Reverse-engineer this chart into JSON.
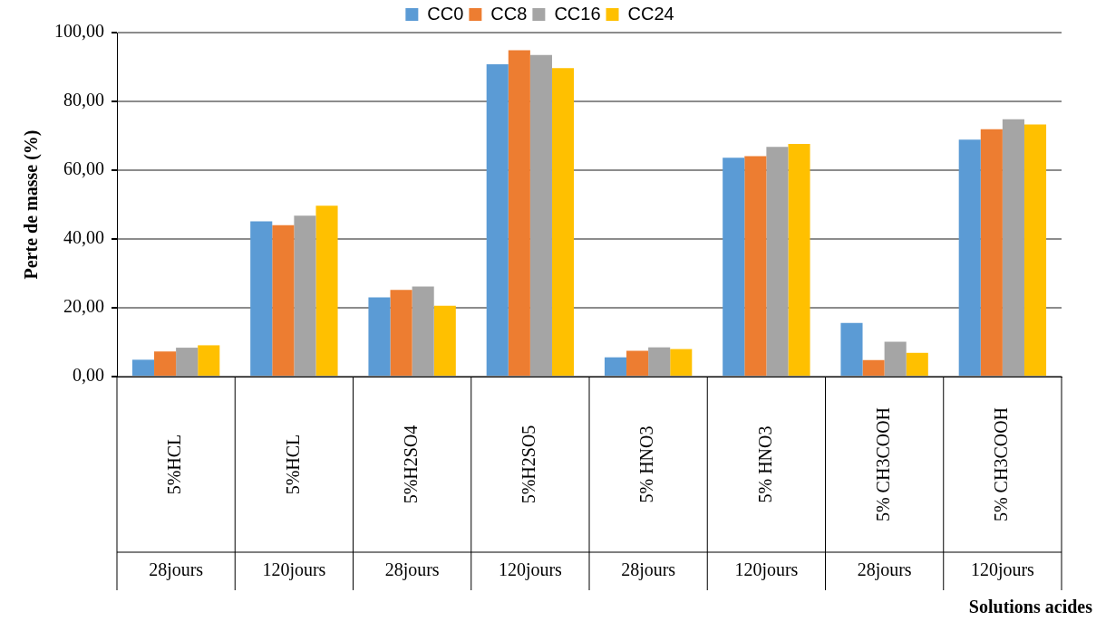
{
  "chart_data": {
    "type": "bar",
    "categories": [
      "5%HCL\n28jours",
      "5%HCL\n120jours",
      "5%H2SO4\n28jours",
      "5%H2SO5\n120jours",
      "5% HNO3\n28jours",
      "5% HNO3\n120jours",
      "5% CH3COOH\n28jours",
      "5% CH3COOH\n120jours"
    ],
    "series": [
      {
        "name": "CC0",
        "color": "#5b9bd5",
        "values": [
          4.9,
          45.1,
          23.0,
          90.8,
          5.6,
          63.6,
          15.6,
          68.9
        ]
      },
      {
        "name": "CC8",
        "color": "#ed7d31",
        "values": [
          7.3,
          44.0,
          25.2,
          94.9,
          7.5,
          64.1,
          4.8,
          71.9
        ]
      },
      {
        "name": "CC16",
        "color": "#a5a5a5",
        "values": [
          8.4,
          46.8,
          26.2,
          93.5,
          8.5,
          66.8,
          10.1,
          74.8
        ]
      },
      {
        "name": "CC24",
        "color": "#ffc000",
        "values": [
          9.1,
          49.7,
          20.6,
          89.7,
          8.0,
          67.6,
          6.9,
          73.3
        ]
      }
    ],
    "ylabel": "Perte de masse (%)",
    "annotations": [
      "Solutions acides"
    ],
    "ylim": [
      0,
      100
    ],
    "yticks": [
      {
        "value": 0,
        "label": "0,00"
      },
      {
        "value": 20,
        "label": "20,00"
      },
      {
        "value": 40,
        "label": "40,00"
      },
      {
        "value": 60,
        "label": "60,00"
      },
      {
        "value": 80,
        "label": "80,00"
      },
      {
        "value": 100,
        "label": "100,00"
      }
    ],
    "grid": "y",
    "legend": "top"
  }
}
